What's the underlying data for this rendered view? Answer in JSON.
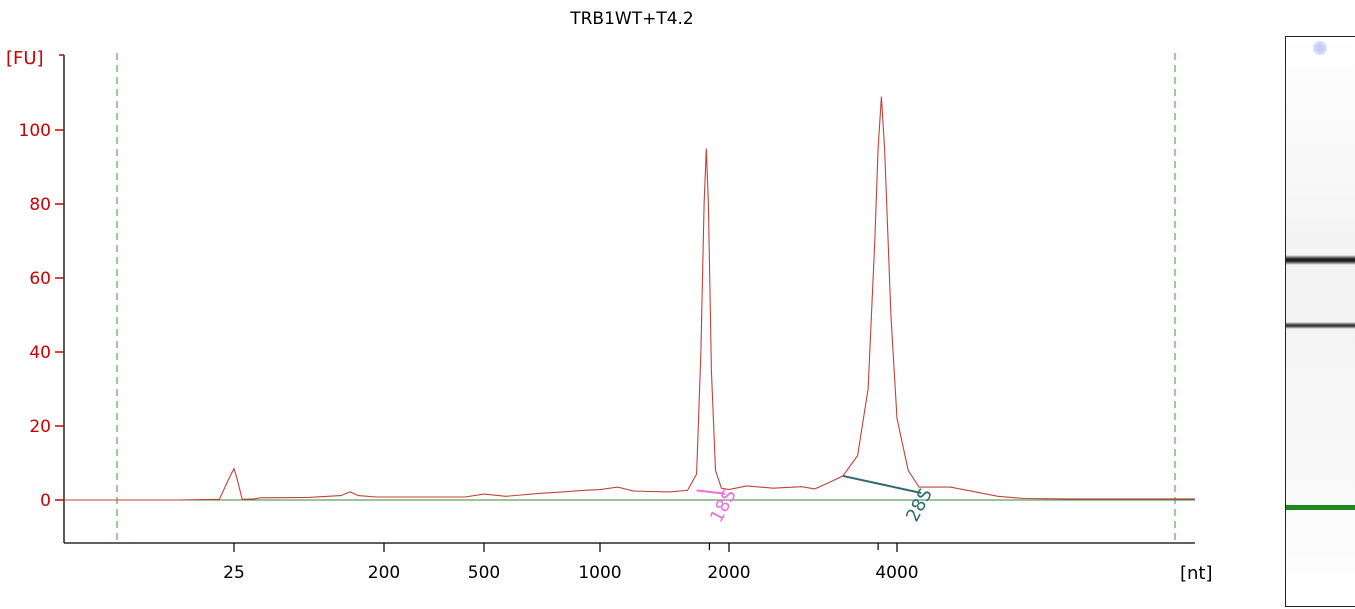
{
  "chart_data": {
    "type": "line",
    "title": "TRB1WT+T4.2",
    "ylabel": "[FU]",
    "xlabel": "[nt]",
    "ylim": [
      -11,
      118
    ],
    "yticks": [
      "0",
      "20",
      "40",
      "60",
      "80",
      "100"
    ],
    "xticks": [
      "25",
      "200",
      "500",
      "1000",
      "2000",
      "4000"
    ],
    "x_scale": "nonlinear (electrophoresis migration)",
    "grid": false,
    "series": [
      {
        "values_description": "fluorescence trace (x in nt, y in FU)",
        "points": [
          [
            9,
            0
          ],
          [
            15,
            0
          ],
          [
            22,
            0.2
          ],
          [
            24,
            6
          ],
          [
            25,
            8.5
          ],
          [
            26,
            6
          ],
          [
            28,
            0.2
          ],
          [
            33,
            0.3
          ],
          [
            36,
            0.6
          ],
          [
            70,
            0.7
          ],
          [
            110,
            1.2
          ],
          [
            125,
            2.2
          ],
          [
            140,
            1.2
          ],
          [
            180,
            0.8
          ],
          [
            420,
            0.8
          ],
          [
            500,
            1.6
          ],
          [
            570,
            1.0
          ],
          [
            700,
            1.8
          ],
          [
            800,
            2.2
          ],
          [
            900,
            2.6
          ],
          [
            1000,
            2.8
          ],
          [
            1100,
            3.5
          ],
          [
            1200,
            2.4
          ],
          [
            1450,
            2.2
          ],
          [
            1600,
            2.6
          ],
          [
            1680,
            7
          ],
          [
            1720,
            40
          ],
          [
            1750,
            80
          ],
          [
            1770,
            95
          ],
          [
            1790,
            80
          ],
          [
            1820,
            35
          ],
          [
            1860,
            8
          ],
          [
            1920,
            3.2
          ],
          [
            2000,
            2.8
          ],
          [
            2150,
            3.8
          ],
          [
            2400,
            3.2
          ],
          [
            2700,
            3.6
          ],
          [
            2850,
            3.0
          ],
          [
            3000,
            4.5
          ],
          [
            3200,
            6.5
          ],
          [
            3400,
            12
          ],
          [
            3550,
            30
          ],
          [
            3650,
            70
          ],
          [
            3700,
            95
          ],
          [
            3750,
            109
          ],
          [
            3800,
            95
          ],
          [
            3900,
            50
          ],
          [
            4000,
            22
          ],
          [
            4100,
            8
          ],
          [
            4200,
            3.5
          ],
          [
            4500,
            3.5
          ],
          [
            4700,
            2.5
          ],
          [
            5000,
            1.0
          ],
          [
            5300,
            0.4
          ],
          [
            5800,
            0.3
          ],
          [
            6600,
            0.3
          ],
          [
            7200,
            0.3
          ],
          [
            7500,
            0.3
          ]
        ]
      }
    ],
    "baseline": 0,
    "markers": [
      {
        "label": "18S",
        "color": "#f06ee0",
        "from": [
          1680,
          2.6
        ],
        "to": [
          1960,
          1.7
        ]
      },
      {
        "label": "28S",
        "color": "#2e6b70",
        "from": [
          3200,
          6.5
        ],
        "to": [
          4220,
          1.9
        ]
      }
    ],
    "gate_lines_nt": [
      9,
      7400
    ]
  },
  "gel": {
    "bands": [
      {
        "name": "28S",
        "intensity": 1.0
      },
      {
        "name": "18S",
        "intensity": 0.85
      },
      {
        "name": "marker",
        "color": "#1e8a1e"
      }
    ]
  }
}
